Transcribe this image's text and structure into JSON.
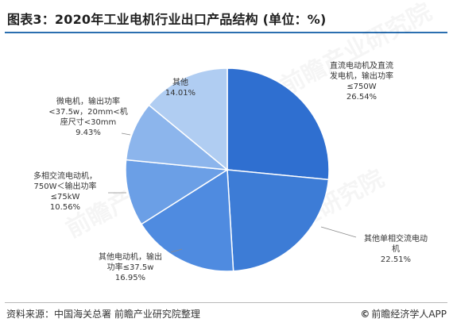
{
  "title": "图表3：2020年工业电机行业出口产品结构 (单位：%)",
  "source": "资料来源：中国海关总署 前瞻产业研究院整理",
  "brand": {
    "logo": "©",
    "text": "前瞻经济学人APP"
  },
  "watermark": "前瞻产业研究院",
  "colors": {
    "title_rule": "#2b6fb0",
    "slices": [
      "#2f6fd0",
      "#3d7cd6",
      "#4f8be0",
      "#6b9fe6",
      "#8cb5ec",
      "#b0cdf2"
    ],
    "edge": "#ffffff"
  },
  "chart_data": {
    "type": "pie",
    "title": "图表3：2020年工业电机行业出口产品结构 (单位：%)",
    "unit": "%",
    "start": "12 o'clock, clockwise",
    "slices": [
      {
        "label_lines": [
          "直流电动机及直流",
          "发电机，输出功率",
          "≤750W"
        ],
        "value": 26.54,
        "value_text": "26.54%"
      },
      {
        "label_lines": [
          "其他单相交流电动",
          "机"
        ],
        "value": 22.51,
        "value_text": "22.51%"
      },
      {
        "label_lines": [
          "其他电动机，输出",
          "功率≤37.5w"
        ],
        "value": 16.95,
        "value_text": "16.95%"
      },
      {
        "label_lines": [
          "多相交流电动机，",
          "750W＜输出功率",
          "≤75kW"
        ],
        "value": 10.56,
        "value_text": "10.56%"
      },
      {
        "label_lines": [
          "微电机，输出功率",
          "<37.5w，20mm<机",
          "座尺寸<30mm"
        ],
        "value": 9.43,
        "value_text": "9.43%"
      },
      {
        "label_lines": [
          "其他"
        ],
        "value": 14.01,
        "value_text": "14.01%"
      }
    ]
  }
}
